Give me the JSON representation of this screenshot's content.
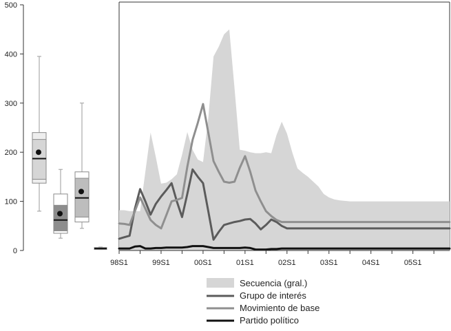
{
  "chart_data": [
    {
      "type": "box",
      "ylim": [
        0,
        500
      ],
      "y_ticks": [
        0,
        100,
        200,
        300,
        400,
        500
      ],
      "grid": false,
      "boxes": [
        {
          "whisker_low": 80,
          "q1": 137,
          "q1_inner": 145,
          "median": 187,
          "q3_inner": 226,
          "q3": 240,
          "whisker_high": 395,
          "mean": 200,
          "fill_outer": "#eeeeee",
          "fill_inner": "#d6d6d6"
        },
        {
          "whisker_low": 25,
          "q1": 35,
          "q1_inner": 40,
          "median": 62,
          "q3_inner": 92,
          "q3": 115,
          "whisker_high": 165,
          "mean": 75,
          "fill_outer": "#ffffff",
          "fill_inner": "#8d8d8d"
        },
        {
          "whisker_low": 45,
          "q1": 58,
          "q1_inner": 68,
          "median": 107,
          "q3_inner": 147,
          "q3": 160,
          "whisker_high": 300,
          "mean": 120,
          "fill_outer": "#ffffff",
          "fill_inner": "#bdbdbd"
        },
        {
          "whisker_low": 2,
          "q1": 2,
          "q1_inner": 3,
          "median": 4,
          "q3_inner": 5,
          "q3": 6,
          "whisker_high": 7,
          "mean": 4,
          "fill_outer": "#8a8a8a",
          "fill_inner": "#8a8a8a"
        }
      ]
    },
    {
      "type": "area",
      "x": [
        0,
        0.5,
        1,
        1.5,
        2,
        2.5,
        3,
        3.5,
        4,
        4.5,
        5,
        5.5,
        6,
        6.5,
        7,
        7.5,
        8,
        8.5,
        9,
        9.5,
        10,
        10.5,
        11,
        11.5,
        12,
        12.5,
        13,
        13.5,
        14,
        14.5,
        15,
        15.5,
        16,
        16.5,
        17,
        17.5,
        18,
        18.5,
        19,
        19.5,
        20,
        20.5,
        21,
        21.5,
        22,
        22.5,
        23,
        23.5,
        24,
        24.5,
        25,
        25.5,
        26,
        26.5,
        27,
        27.5,
        28,
        28.5,
        29,
        29.5,
        30,
        30.5,
        31,
        31.5
      ],
      "x_ticks": [
        "98S1",
        "99S1",
        "00S1",
        "01S1",
        "02S1",
        "03S1",
        "04S1",
        "05S1"
      ],
      "x_tick_positions": [
        0,
        4,
        8,
        12,
        16,
        20,
        24,
        28
      ],
      "ylim": [
        0,
        500
      ],
      "xlim": [
        0,
        31.5
      ],
      "grid": false,
      "legend_position": "bottom",
      "series": [
        {
          "name": "Secuencia (gral.)",
          "kind": "area",
          "color": "#d6d6d6",
          "values": [
            82,
            82,
            80,
            80,
            80,
            160,
            240,
            190,
            136,
            138,
            145,
            155,
            195,
            241,
            205,
            185,
            180,
            270,
            395,
            415,
            440,
            450,
            330,
            205,
            203,
            200,
            198,
            198,
            200,
            198,
            235,
            262,
            238,
            200,
            167,
            158,
            150,
            140,
            130,
            115,
            108,
            104,
            102,
            101,
            100,
            100,
            100,
            100,
            100,
            100,
            100,
            100,
            100,
            100,
            100,
            100,
            100,
            100,
            100,
            100,
            100,
            100,
            100,
            100
          ]
        },
        {
          "name": "Grupo de interés",
          "kind": "line",
          "color": "#5b5b5b",
          "values": [
            24,
            27,
            30,
            85,
            125,
            100,
            73,
            95,
            110,
            123,
            137,
            100,
            68,
            115,
            165,
            150,
            137,
            80,
            22,
            38,
            52,
            55,
            58,
            60,
            63,
            64,
            55,
            43,
            52,
            63,
            58,
            50,
            45,
            45,
            45,
            45,
            45,
            45,
            45,
            45,
            45,
            45,
            45,
            45,
            45,
            45,
            45,
            45,
            45,
            45,
            45,
            45,
            45,
            45,
            45,
            45,
            45,
            45,
            45,
            45,
            45,
            45,
            45,
            45
          ]
        },
        {
          "name": "Movimiento de base",
          "kind": "line",
          "color": "#8f8f8f",
          "values": [
            55,
            54,
            52,
            80,
            108,
            85,
            62,
            52,
            45,
            72,
            100,
            103,
            107,
            170,
            225,
            260,
            298,
            240,
            182,
            160,
            140,
            138,
            140,
            168,
            192,
            160,
            122,
            100,
            80,
            70,
            62,
            58,
            58,
            58,
            58,
            58,
            58,
            58,
            58,
            58,
            58,
            58,
            58,
            58,
            58,
            58,
            58,
            58,
            58,
            58,
            58,
            58,
            58,
            58,
            58,
            58,
            58,
            58,
            58,
            58,
            58,
            58,
            58,
            58
          ]
        },
        {
          "name": "Partido político",
          "kind": "line",
          "color": "#111111",
          "values": [
            4,
            4,
            4,
            8,
            9,
            4,
            4,
            5,
            5,
            6,
            6,
            6,
            6,
            7,
            9,
            9,
            9,
            7,
            5,
            5,
            5,
            5,
            5,
            5,
            6,
            5,
            2,
            2,
            2,
            3,
            3,
            4,
            4,
            4,
            4,
            4,
            4,
            4,
            4,
            4,
            4,
            4,
            4,
            4,
            4,
            4,
            4,
            4,
            4,
            4,
            4,
            4,
            4,
            4,
            4,
            4,
            4,
            4,
            4,
            4,
            4,
            4,
            4,
            4
          ]
        }
      ]
    }
  ],
  "colors": {
    "axis": "#333333",
    "tick_text": "#222222"
  }
}
